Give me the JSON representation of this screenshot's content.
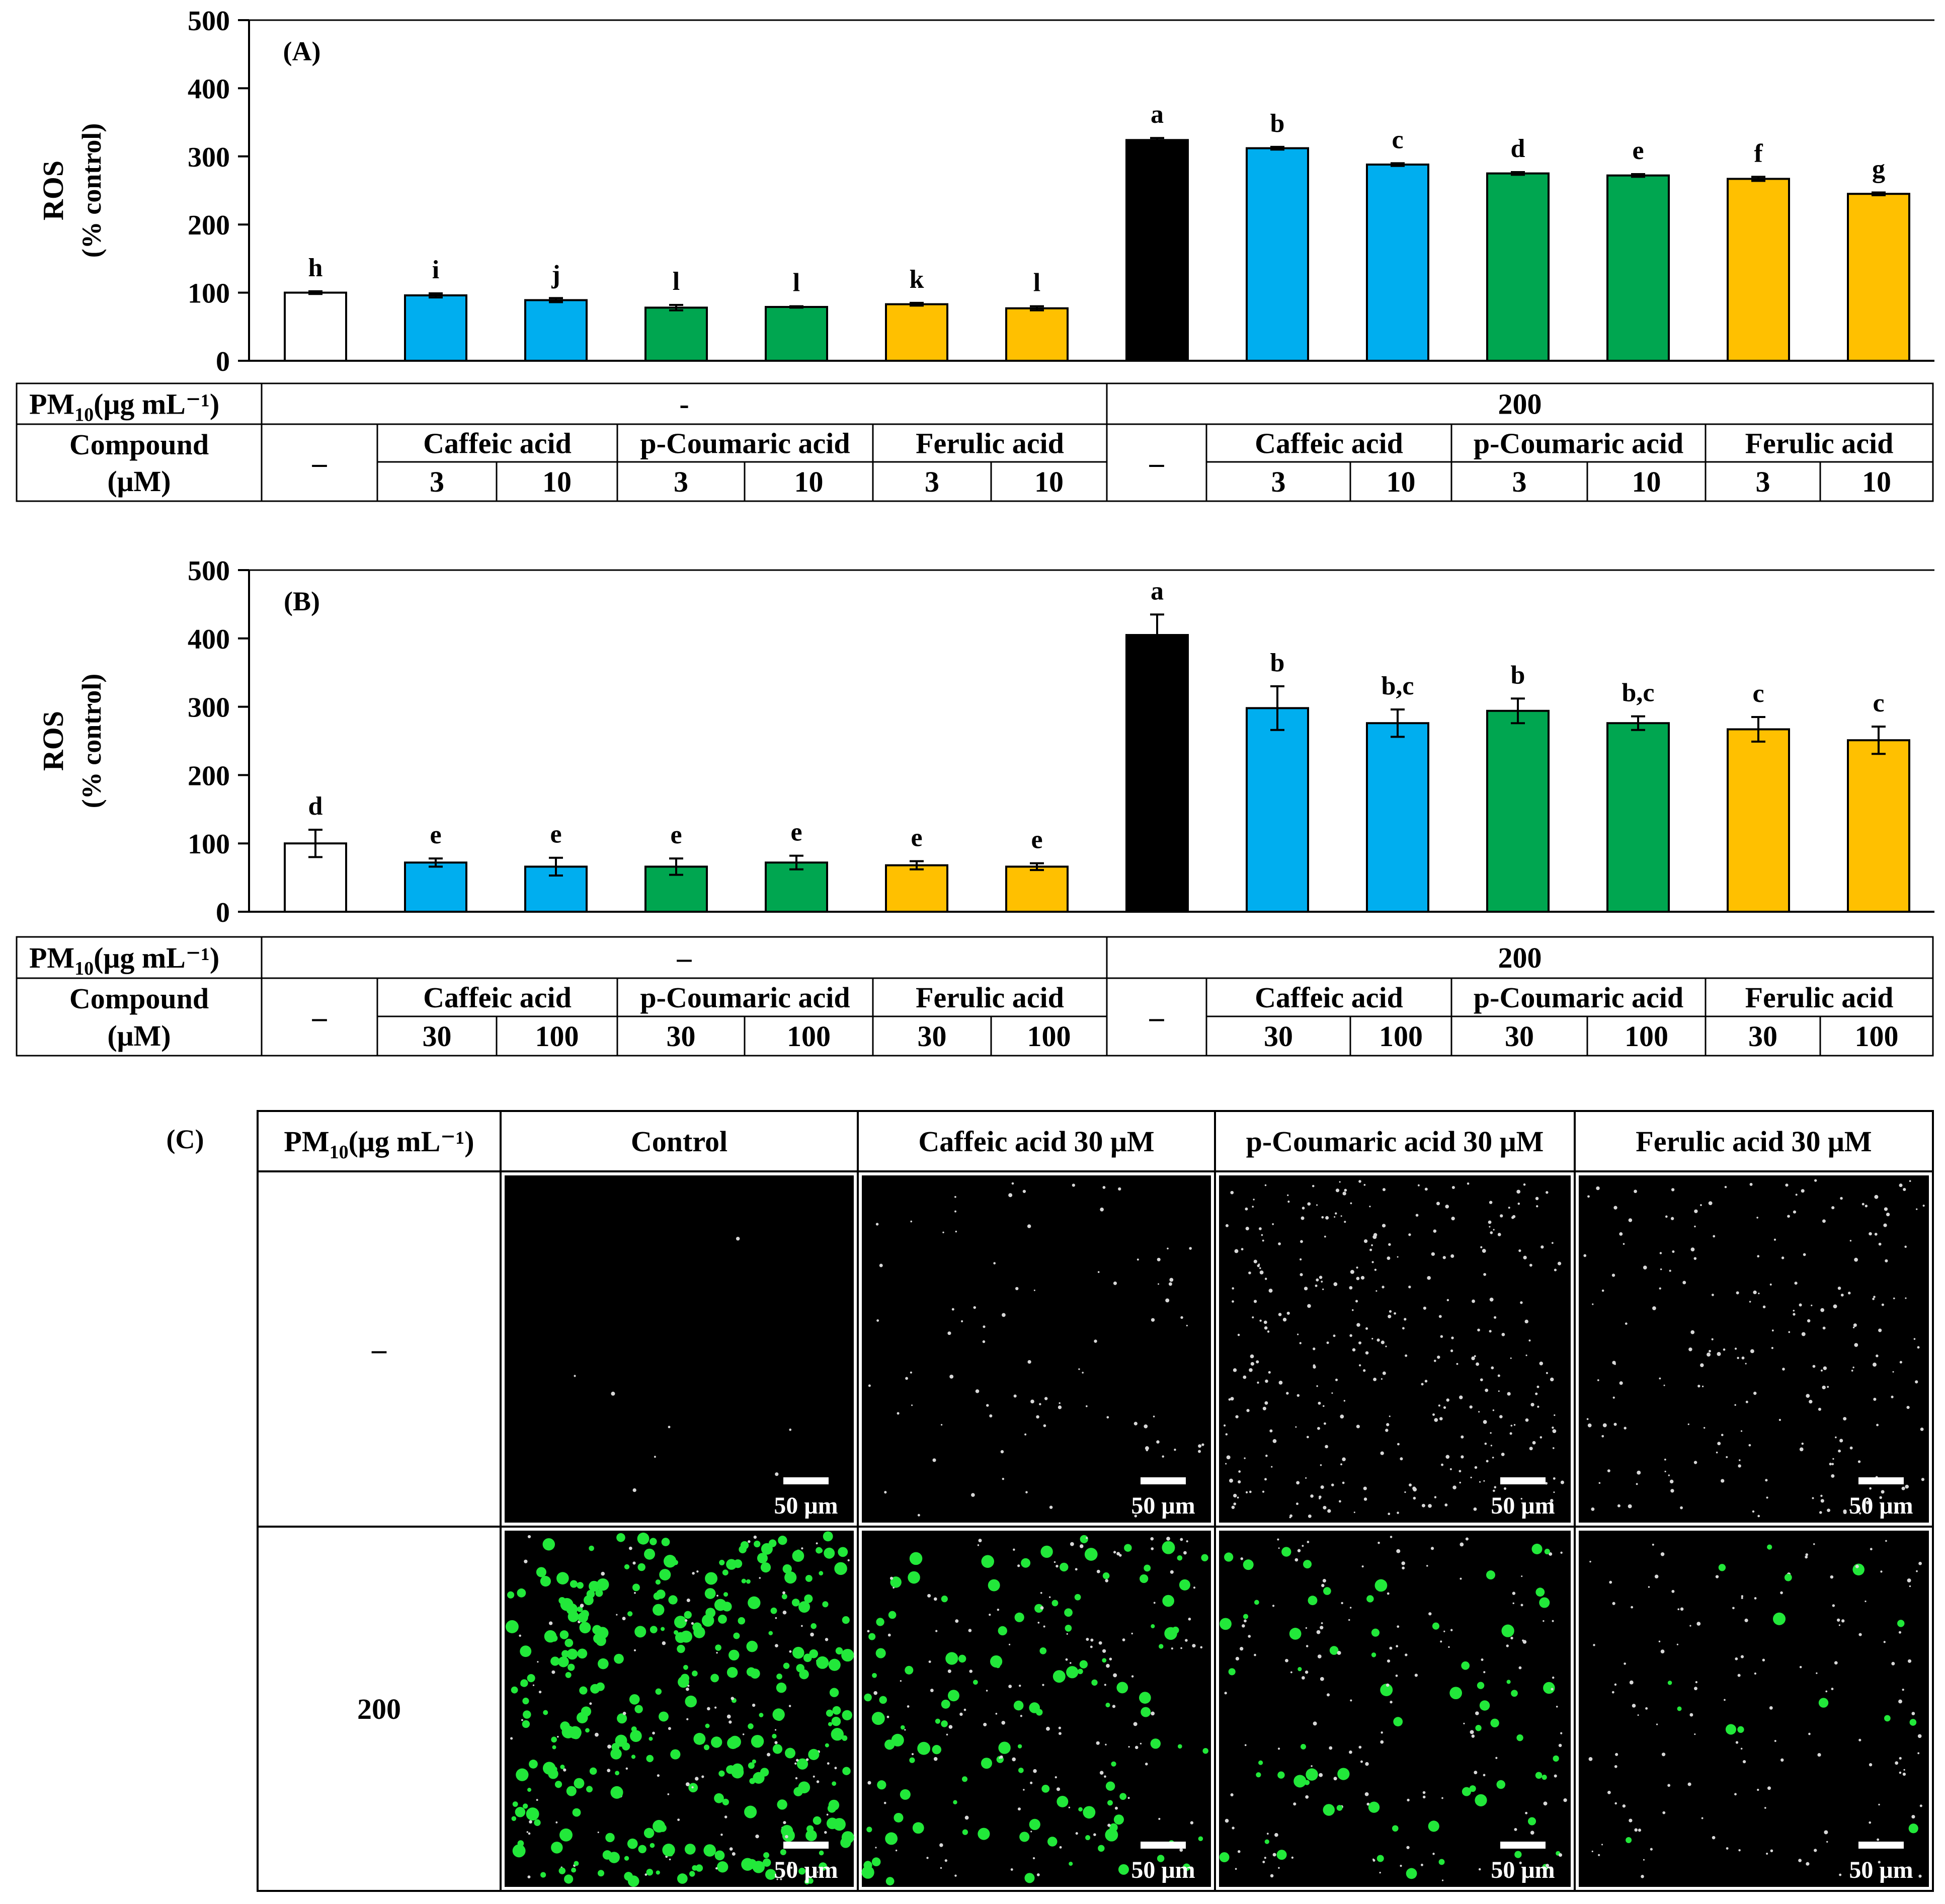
{
  "colors": {
    "control": "#ffffff",
    "pm": "#000000",
    "caffeic": "#00aeef",
    "coumaric": "#00a650",
    "ferulic": "#ffc000",
    "axis": "#000000"
  },
  "chart_data": [
    {
      "type": "bar",
      "panel_label": "(A)",
      "ylabel_line1": "ROS",
      "ylabel_line2": "(% control)",
      "ylim": [
        0,
        500
      ],
      "yticks": [
        "0",
        "100",
        "200",
        "300",
        "400",
        "500"
      ],
      "bars": [
        {
          "value": 100,
          "error": 2,
          "letter": "h",
          "color_key": "control"
        },
        {
          "value": 96,
          "error": 3,
          "letter": "i",
          "color_key": "caffeic"
        },
        {
          "value": 89,
          "error": 3,
          "letter": "j",
          "color_key": "caffeic"
        },
        {
          "value": 78,
          "error": 4,
          "letter": "l",
          "color_key": "coumaric"
        },
        {
          "value": 79,
          "error": 1,
          "letter": "l",
          "color_key": "coumaric"
        },
        {
          "value": 83,
          "error": 2,
          "letter": "k",
          "color_key": "ferulic"
        },
        {
          "value": 77,
          "error": 3,
          "letter": "l",
          "color_key": "ferulic"
        },
        {
          "value": 324,
          "error": 3,
          "letter": "a",
          "color_key": "pm"
        },
        {
          "value": 312,
          "error": 2,
          "letter": "b",
          "color_key": "caffeic"
        },
        {
          "value": 288,
          "error": 2,
          "letter": "c",
          "color_key": "caffeic"
        },
        {
          "value": 275,
          "error": 2,
          "letter": "d",
          "color_key": "coumaric"
        },
        {
          "value": 272,
          "error": 2,
          "letter": "e",
          "color_key": "coumaric"
        },
        {
          "value": 267,
          "error": 3,
          "letter": "f",
          "color_key": "ferulic"
        },
        {
          "value": 245,
          "error": 2,
          "letter": "g",
          "color_key": "ferulic"
        }
      ],
      "table": {
        "pm_label": "PM",
        "pm_sub": "10",
        "pm_unit": "(μg mL⁻¹)",
        "pm_without": "-",
        "pm_with": "200",
        "compound_label": "Compound",
        "unit_label": "(μM)",
        "none_mark": "–",
        "caffeic": "Caffeic acid",
        "coumaric": "p-Coumaric acid",
        "ferulic": "Ferulic  acid",
        "conc": [
          "3",
          "10",
          "3",
          "10",
          "3",
          "10",
          "3",
          "10",
          "3",
          "10",
          "3",
          "10"
        ]
      }
    },
    {
      "type": "bar",
      "panel_label": "(B)",
      "ylabel_line1": "ROS",
      "ylabel_line2": "(% control)",
      "ylim": [
        0,
        500
      ],
      "yticks": [
        "0",
        "100",
        "200",
        "300",
        "400",
        "500"
      ],
      "bars": [
        {
          "value": 100,
          "error": 20,
          "letter": "d",
          "color_key": "control"
        },
        {
          "value": 72,
          "error": 6,
          "letter": "e",
          "color_key": "caffeic"
        },
        {
          "value": 66,
          "error": 13,
          "letter": "e",
          "color_key": "caffeic"
        },
        {
          "value": 66,
          "error": 12,
          "letter": "e",
          "color_key": "coumaric"
        },
        {
          "value": 72,
          "error": 10,
          "letter": "e",
          "color_key": "coumaric"
        },
        {
          "value": 68,
          "error": 6,
          "letter": "e",
          "color_key": "ferulic"
        },
        {
          "value": 66,
          "error": 5,
          "letter": "e",
          "color_key": "ferulic"
        },
        {
          "value": 405,
          "error": 30,
          "letter": "a",
          "color_key": "pm"
        },
        {
          "value": 298,
          "error": 32,
          "letter": "b",
          "color_key": "caffeic"
        },
        {
          "value": 276,
          "error": 20,
          "letter": "b,c",
          "color_key": "caffeic"
        },
        {
          "value": 294,
          "error": 18,
          "letter": "b",
          "color_key": "coumaric"
        },
        {
          "value": 276,
          "error": 10,
          "letter": "b,c",
          "color_key": "coumaric"
        },
        {
          "value": 267,
          "error": 18,
          "letter": "c",
          "color_key": "ferulic"
        },
        {
          "value": 251,
          "error": 20,
          "letter": "c",
          "color_key": "ferulic"
        }
      ],
      "table": {
        "pm_label": "PM",
        "pm_sub": "10",
        "pm_unit": "(μg mL⁻¹)",
        "pm_without": "–",
        "pm_with": "200",
        "compound_label": "Compound",
        "unit_label": "(μM)",
        "none_mark": "–",
        "caffeic": "Caffeic acid",
        "coumaric": "p-Coumaric acid",
        "ferulic": "Ferulic  acid",
        "conc": [
          "30",
          "100",
          "30",
          "100",
          "30",
          "100",
          "30",
          "100",
          "30",
          "100",
          "30",
          "100"
        ]
      }
    }
  ],
  "panel_c": {
    "label": "(C)",
    "pm_label": "PM",
    "pm_sub": "10",
    "pm_unit": "(μg mL⁻¹)",
    "columns": [
      "Control",
      "Caffeic acid 30 μM",
      "p-Coumaric acid 30 μM",
      "Ferulic acid 30 μM"
    ],
    "rows": [
      "–",
      "200"
    ],
    "scale_bar": "50 μm",
    "fluorescence_density": [
      [
        0.02,
        0.2,
        0.8,
        0.5
      ],
      [
        1.0,
        0.6,
        0.5,
        0.35
      ]
    ],
    "green_fraction": [
      [
        0,
        0,
        0,
        0
      ],
      [
        0.7,
        0.45,
        0.3,
        0.1
      ]
    ]
  }
}
